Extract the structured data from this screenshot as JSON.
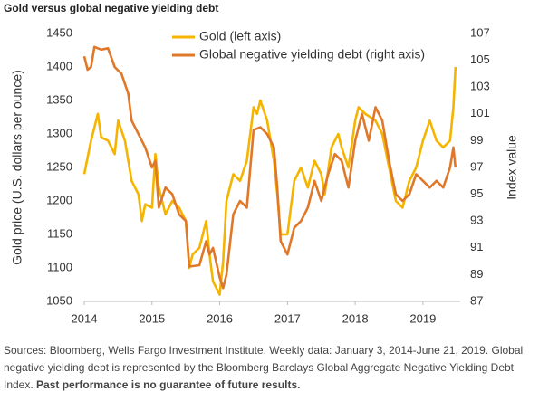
{
  "chart_data": {
    "type": "line",
    "title": "Gold versus global negative yielding debt",
    "y_label": "Gold price (U.S. dollars per ounce)",
    "y2_label": "Index value",
    "xlim": [
      2014,
      2019.55
    ],
    "xticks": [
      2014,
      2015,
      2016,
      2017,
      2018,
      2019
    ],
    "ylim": [
      1050,
      1450
    ],
    "yticks": [
      1050,
      1100,
      1150,
      1200,
      1250,
      1300,
      1350,
      1400,
      1450
    ],
    "y2lim": [
      87,
      107
    ],
    "y2ticks": [
      87,
      89,
      91,
      93,
      95,
      97,
      99,
      101,
      103,
      105,
      107
    ],
    "grid": false,
    "legend": "top",
    "series": [
      {
        "name": "Gold (left axis)",
        "color": "#F5B400",
        "axis": "y",
        "x": [
          2014.0,
          2014.05,
          2014.1,
          2014.2,
          2014.25,
          2014.35,
          2014.45,
          2014.5,
          2014.6,
          2014.7,
          2014.8,
          2014.85,
          2014.9,
          2015.0,
          2015.05,
          2015.1,
          2015.2,
          2015.3,
          2015.4,
          2015.5,
          2015.55,
          2015.6,
          2015.7,
          2015.8,
          2015.85,
          2015.9,
          2016.0,
          2016.05,
          2016.1,
          2016.2,
          2016.3,
          2016.4,
          2016.5,
          2016.55,
          2016.6,
          2016.7,
          2016.8,
          2016.85,
          2016.9,
          2017.0,
          2017.1,
          2017.2,
          2017.3,
          2017.4,
          2017.5,
          2017.55,
          2017.65,
          2017.75,
          2017.8,
          2017.9,
          2018.0,
          2018.05,
          2018.15,
          2018.3,
          2018.4,
          2018.5,
          2018.6,
          2018.7,
          2018.8,
          2018.9,
          2019.0,
          2019.1,
          2019.2,
          2019.3,
          2019.4,
          2019.45,
          2019.48
        ],
        "values": [
          1240,
          1265,
          1290,
          1330,
          1295,
          1290,
          1270,
          1320,
          1290,
          1230,
          1210,
          1170,
          1195,
          1190,
          1270,
          1220,
          1180,
          1200,
          1190,
          1170,
          1100,
          1120,
          1130,
          1170,
          1120,
          1080,
          1060,
          1110,
          1200,
          1240,
          1230,
          1260,
          1340,
          1330,
          1350,
          1320,
          1260,
          1210,
          1150,
          1150,
          1230,
          1250,
          1220,
          1260,
          1240,
          1210,
          1280,
          1300,
          1280,
          1250,
          1320,
          1340,
          1330,
          1320,
          1300,
          1250,
          1200,
          1190,
          1230,
          1250,
          1290,
          1320,
          1290,
          1280,
          1290,
          1340,
          1400
        ]
      },
      {
        "name": "Global negative yielding debt (right axis)",
        "color": "#E0782A",
        "axis": "y2",
        "x": [
          2014.0,
          2014.05,
          2014.1,
          2014.15,
          2014.25,
          2014.35,
          2014.45,
          2014.55,
          2014.65,
          2014.7,
          2014.8,
          2014.9,
          2015.0,
          2015.05,
          2015.1,
          2015.2,
          2015.3,
          2015.4,
          2015.5,
          2015.55,
          2015.7,
          2015.8,
          2015.85,
          2015.9,
          2016.0,
          2016.05,
          2016.1,
          2016.2,
          2016.3,
          2016.4,
          2016.5,
          2016.6,
          2016.7,
          2016.8,
          2016.85,
          2016.9,
          2017.0,
          2017.1,
          2017.2,
          2017.3,
          2017.4,
          2017.5,
          2017.6,
          2017.7,
          2017.8,
          2017.9,
          2018.0,
          2018.1,
          2018.2,
          2018.3,
          2018.4,
          2018.5,
          2018.6,
          2018.7,
          2018.8,
          2018.9,
          2019.0,
          2019.1,
          2019.2,
          2019.3,
          2019.4,
          2019.45,
          2019.48
        ],
        "values": [
          105.3,
          104.3,
          104.5,
          106.0,
          105.8,
          105.9,
          104.5,
          104.0,
          102.5,
          100.5,
          99.5,
          98.5,
          97.0,
          97.5,
          94.0,
          95.5,
          95.0,
          93.5,
          93.0,
          89.6,
          89.7,
          91.5,
          90.5,
          91.0,
          88.8,
          88.0,
          89.0,
          93.5,
          94.5,
          94.0,
          99.8,
          100.0,
          99.5,
          98.5,
          95.5,
          91.5,
          90.5,
          92.5,
          93.0,
          94.0,
          96.0,
          94.5,
          96.5,
          98.0,
          97.5,
          95.5,
          99.0,
          101.0,
          99.0,
          101.5,
          100.5,
          97.5,
          95.0,
          94.5,
          95.0,
          96.5,
          96.0,
          95.5,
          96.0,
          95.5,
          97.0,
          98.5,
          97.0
        ]
      }
    ]
  },
  "footer": {
    "sources": "Sources: Bloomberg, Wells Fargo Investment Institute. Weekly data: January 3, 2014-June 21, 2019. Global negative yielding debt is represented by the Bloomberg Barclays Global Aggregate Negative Yielding Debt Index.",
    "disclaimer": "Past performance is no guarantee of future results."
  }
}
